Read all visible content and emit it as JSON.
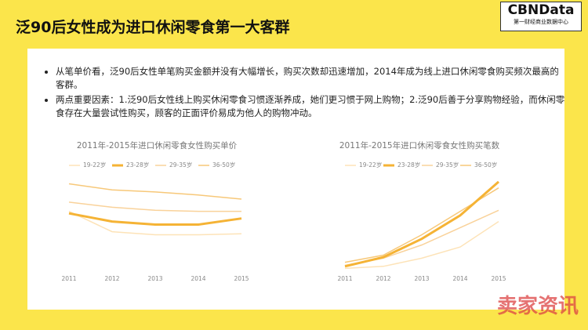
{
  "title": "泛90后女性成为进口休闲零食第一大客群",
  "logo": {
    "name": "CBNData",
    "subtitle": "第一财经商业数据中心"
  },
  "bullets": [
    "从笔单价看，泛90后女性单笔购买金额并没有大幅增长，购买次数却迅速增加，2014年成为线上进口休闲零食购买频次最高的客群。",
    "两点重要因素：1.泛90后女性线上购买休闲零食习惯逐渐养成，她们更习惯于网上购物；2.泛90后善于分享购物经验，而休闲零食存在大量尝试性购买，顾客的正面评价易成为他人的购物冲动。"
  ],
  "watermark": "卖家资讯",
  "chart_data": [
    {
      "type": "line",
      "title": "2011年-2015年进口休闲零食女性购买单价",
      "categories": [
        "2011",
        "2012",
        "2013",
        "2014",
        "2015"
      ],
      "ylim": [
        0,
        100
      ],
      "series": [
        {
          "name": "19-22岁",
          "color": "#fde3b8",
          "values": [
            58,
            38,
            35,
            35,
            36
          ]
        },
        {
          "name": "23-28岁",
          "color": "#f5b335",
          "values": [
            56,
            48,
            45,
            45,
            51
          ]
        },
        {
          "name": "29-35岁",
          "color": "#f9d29a",
          "values": [
            67,
            62,
            59,
            58,
            58
          ]
        },
        {
          "name": "36-50岁",
          "color": "#f7c879",
          "values": [
            85,
            79,
            77,
            74,
            70
          ]
        }
      ]
    },
    {
      "type": "line",
      "title": "2011年-2015年进口休闲零食女性购买笔数",
      "categories": [
        "2011",
        "2012",
        "2013",
        "2014",
        "2015"
      ],
      "ylim": [
        0,
        100
      ],
      "series": [
        {
          "name": "19-22岁",
          "color": "#fde3b8",
          "values": [
            2,
            4,
            12,
            23,
            48
          ]
        },
        {
          "name": "23-28岁",
          "color": "#f5b335",
          "values": [
            4,
            13,
            31,
            54,
            87
          ]
        },
        {
          "name": "29-35岁",
          "color": "#f9d29a",
          "values": [
            5,
            12,
            25,
            42,
            59
          ]
        },
        {
          "name": "36-50岁",
          "color": "#f7c879",
          "values": [
            8,
            15,
            35,
            58,
            81
          ]
        }
      ]
    }
  ]
}
